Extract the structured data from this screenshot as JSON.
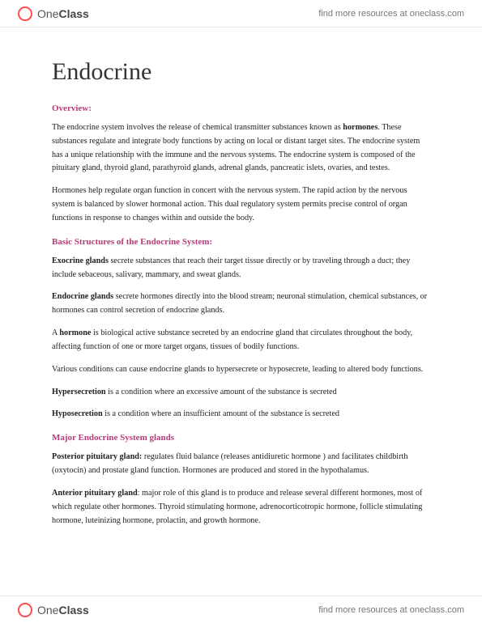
{
  "brand": {
    "one": "One",
    "class": "Class"
  },
  "resources": "find more resources at oneclass.com",
  "title": "Endocrine",
  "headings": {
    "overview": "Overview:",
    "structures": "Basic Structures of the Endocrine System:",
    "glands": "Major Endocrine System glands"
  },
  "overview": {
    "p1a": "The endocrine system involves the release of chemical transmitter substances known as ",
    "p1b": "hormones",
    "p1c": ". These substances regulate and integrate body functions by acting on local or distant target sites. The endocrine system has a unique relationship with the immune and the nervous systems. The endocrine system is composed of the pituitary gland, thyroid gland, parathyroid glands, adrenal glands, pancreatic islets, ovaries, and testes.",
    "p2": "Hormones help regulate organ function in concert with the nervous system. The rapid action by the nervous system is balanced by slower hormonal action. This dual regulatory system permits precise control of organ functions in response to changes within and outside the body."
  },
  "structures": {
    "s1b": "Exocrine glands",
    "s1t": " secrete substances that reach their target tissue directly or by traveling through a duct; they include sebaceous, salivary, mammary, and sweat glands.",
    "s2b": "Endocrine glands",
    "s2t": " secrete hormones directly into the blood stream; neuronal stimulation, chemical substances, or hormones can control secretion of endocrine glands.",
    "s3a": "A ",
    "s3b": "hormone",
    "s3t": " is biological active substance secreted by an endocrine gland that circulates throughout the body, affecting function of one or more target organs, tissues of bodily functions.",
    "s4": "Various conditions can cause endocrine glands to hypersecrete or hyposecrete, leading to altered body functions.",
    "s5b": "Hypersecretion",
    "s5t": " is a condition where an excessive amount of the substance is secreted",
    "s6b": "Hyposecretion",
    "s6t": " is a condition where an insufficient amount of the substance is secreted"
  },
  "glands": {
    "g1b": "Posterior pituitary gland:",
    "g1t": " regulates fluid balance (releases antidiuretic hormone ) and facilitates childbirth (oxytocin) and prostate gland function. Hormones are produced and stored in the hypothalamus.",
    "g2b": "Anterior pituitary gland",
    "g2t": ": major role of this gland is to produce and release several different hormones, most of which regulate other hormones. Thyroid stimulating hormone, adrenocorticotropic hormone, follicle stimulating hormone, luteinizing hormone, prolactin, and growth hormone."
  },
  "colors": {
    "heading": "#b83b7a",
    "text": "#222222",
    "logo": "#ff4d4d",
    "link": "#777777"
  }
}
